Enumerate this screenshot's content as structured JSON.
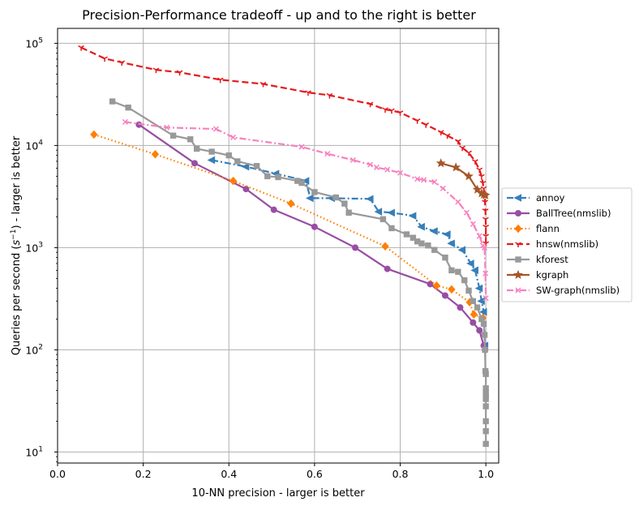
{
  "chart_data": {
    "type": "line",
    "title": "Precision-Performance tradeoff - up and to the right is better",
    "xlabel": "10-NN precision - larger is better",
    "ylabel_parts": [
      "Queries per second (",
      "s",
      "−1",
      ") - larger is better"
    ],
    "xlim": [
      0.0,
      1.03
    ],
    "ylim": [
      7.8,
      140000
    ],
    "yscale": "log",
    "grid": true,
    "legend_position": "outside-right",
    "x_ticks": [
      {
        "value": 0.0,
        "label": "0.0"
      },
      {
        "value": 0.2,
        "label": "0.2"
      },
      {
        "value": 0.4,
        "label": "0.4"
      },
      {
        "value": 0.6,
        "label": "0.6"
      },
      {
        "value": 0.8,
        "label": "0.8"
      },
      {
        "value": 1.0,
        "label": "1.0"
      }
    ],
    "y_ticks": [
      {
        "value": 10,
        "base": "10",
        "exp": "1"
      },
      {
        "value": 100,
        "base": "10",
        "exp": "2"
      },
      {
        "value": 1000,
        "base": "10",
        "exp": "3"
      },
      {
        "value": 10000,
        "base": "10",
        "exp": "4"
      },
      {
        "value": 100000,
        "base": "10",
        "exp": "5"
      }
    ],
    "series": [
      {
        "name": "annoy",
        "color": "#377eb8",
        "dash": "dashdot",
        "marker": "triangle-left",
        "points": [
          [
            0.36,
            7200
          ],
          [
            0.44,
            6200
          ],
          [
            0.51,
            5300
          ],
          [
            0.58,
            4500
          ],
          [
            0.59,
            3050
          ],
          [
            0.64,
            3050
          ],
          [
            0.73,
            3000
          ],
          [
            0.75,
            2250
          ],
          [
            0.78,
            2200
          ],
          [
            0.83,
            2050
          ],
          [
            0.85,
            1600
          ],
          [
            0.88,
            1450
          ],
          [
            0.91,
            1350
          ],
          [
            0.92,
            1100
          ],
          [
            0.945,
            950
          ],
          [
            0.965,
            700
          ],
          [
            0.975,
            600
          ],
          [
            0.985,
            400
          ],
          [
            0.99,
            300
          ],
          [
            0.995,
            235
          ],
          [
            0.998,
            110
          ]
        ]
      },
      {
        "name": "BallTree(nmslib)",
        "color": "#984ea3",
        "dash": "solid",
        "marker": "circle",
        "points": [
          [
            0.19,
            16000
          ],
          [
            0.32,
            6700
          ],
          [
            0.44,
            3750
          ],
          [
            0.505,
            2350
          ],
          [
            0.6,
            1600
          ],
          [
            0.695,
            1000
          ],
          [
            0.77,
            620
          ],
          [
            0.87,
            440
          ],
          [
            0.905,
            340
          ],
          [
            0.94,
            260
          ],
          [
            0.97,
            185
          ],
          [
            0.985,
            155
          ],
          [
            0.995,
            110
          ],
          [
            0.998,
            100
          ]
        ]
      },
      {
        "name": "flann",
        "color": "#ff7f00",
        "dash": "dotted",
        "marker": "diamond",
        "points": [
          [
            0.085,
            12800
          ],
          [
            0.228,
            8200
          ],
          [
            0.41,
            4500
          ],
          [
            0.545,
            2700
          ],
          [
            0.765,
            1030
          ],
          [
            0.885,
            425
          ],
          [
            0.92,
            390
          ],
          [
            0.962,
            292
          ],
          [
            0.972,
            222
          ],
          [
            0.993,
            205
          ]
        ]
      },
      {
        "name": "hnsw(nmslib)",
        "color": "#e41a1c",
        "dash": "dashed",
        "marker": "tri-down",
        "points": [
          [
            0.055,
            91000
          ],
          [
            0.11,
            71000
          ],
          [
            0.15,
            65000
          ],
          [
            0.23,
            55000
          ],
          [
            0.285,
            52000
          ],
          [
            0.38,
            44000
          ],
          [
            0.48,
            40000
          ],
          [
            0.585,
            33000
          ],
          [
            0.635,
            31000
          ],
          [
            0.73,
            25500
          ],
          [
            0.765,
            22500
          ],
          [
            0.78,
            22000
          ],
          [
            0.8,
            21000
          ],
          [
            0.84,
            17500
          ],
          [
            0.86,
            16000
          ],
          [
            0.895,
            13500
          ],
          [
            0.91,
            12500
          ],
          [
            0.935,
            11000
          ],
          [
            0.945,
            9500
          ],
          [
            0.96,
            8500
          ],
          [
            0.975,
            7000
          ],
          [
            0.985,
            5800
          ],
          [
            0.99,
            5000
          ],
          [
            0.993,
            4300
          ],
          [
            0.995,
            3800
          ],
          [
            0.997,
            3300
          ],
          [
            0.998,
            2800
          ],
          [
            0.999,
            2300
          ],
          [
            0.9995,
            1900
          ],
          [
            1.0,
            1600
          ],
          [
            1.0,
            1300
          ],
          [
            1.0,
            1100
          ]
        ]
      },
      {
        "name": "kforest",
        "color": "#999999",
        "dash": "solid",
        "marker": "square",
        "points": [
          [
            0.128,
            27000
          ],
          [
            0.165,
            23500
          ],
          [
            0.27,
            12500
          ],
          [
            0.31,
            11500
          ],
          [
            0.325,
            9300
          ],
          [
            0.36,
            8700
          ],
          [
            0.4,
            8000
          ],
          [
            0.42,
            7000
          ],
          [
            0.465,
            6300
          ],
          [
            0.49,
            5000
          ],
          [
            0.515,
            4900
          ],
          [
            0.56,
            4500
          ],
          [
            0.57,
            4300
          ],
          [
            0.6,
            3500
          ],
          [
            0.65,
            3100
          ],
          [
            0.67,
            2700
          ],
          [
            0.68,
            2200
          ],
          [
            0.76,
            1900
          ],
          [
            0.78,
            1550
          ],
          [
            0.815,
            1350
          ],
          [
            0.83,
            1250
          ],
          [
            0.84,
            1150
          ],
          [
            0.85,
            1100
          ],
          [
            0.865,
            1050
          ],
          [
            0.88,
            950
          ],
          [
            0.905,
            800
          ],
          [
            0.92,
            600
          ],
          [
            0.935,
            580
          ],
          [
            0.95,
            480
          ],
          [
            0.96,
            380
          ],
          [
            0.97,
            300
          ],
          [
            0.98,
            260
          ],
          [
            0.99,
            200
          ],
          [
            0.995,
            180
          ],
          [
            0.997,
            140
          ],
          [
            0.998,
            100
          ],
          [
            0.999,
            62
          ],
          [
            1.0,
            58
          ],
          [
            1.0,
            42
          ],
          [
            1.0,
            38
          ],
          [
            1.0,
            35
          ],
          [
            1.0,
            33
          ],
          [
            1.0,
            28
          ],
          [
            1.0,
            20
          ],
          [
            1.0,
            16
          ],
          [
            1.0,
            12
          ]
        ]
      },
      {
        "name": "kgraph",
        "color": "#a65628",
        "dash": "solid",
        "marker": "star",
        "points": [
          [
            0.895,
            6700
          ],
          [
            0.93,
            6100
          ],
          [
            0.96,
            5000
          ],
          [
            0.98,
            3700
          ],
          [
            0.99,
            3400
          ],
          [
            0.995,
            3300
          ],
          [
            0.999,
            3250
          ]
        ]
      },
      {
        "name": "SW-graph(nmslib)",
        "color": "#f781bf",
        "dash": "dashdot",
        "marker": "x",
        "points": [
          [
            0.158,
            17000
          ],
          [
            0.255,
            15000
          ],
          [
            0.37,
            14500
          ],
          [
            0.41,
            12000
          ],
          [
            0.57,
            9700
          ],
          [
            0.63,
            8300
          ],
          [
            0.69,
            7200
          ],
          [
            0.73,
            6500
          ],
          [
            0.745,
            6100
          ],
          [
            0.77,
            5800
          ],
          [
            0.8,
            5400
          ],
          [
            0.84,
            4700
          ],
          [
            0.855,
            4600
          ],
          [
            0.88,
            4400
          ],
          [
            0.9,
            3800
          ],
          [
            0.935,
            2800
          ],
          [
            0.955,
            2200
          ],
          [
            0.97,
            1700
          ],
          [
            0.985,
            1300
          ],
          [
            0.993,
            1050
          ],
          [
            0.997,
            1000
          ],
          [
            0.999,
            560
          ],
          [
            1.0,
            320
          ]
        ]
      }
    ]
  }
}
